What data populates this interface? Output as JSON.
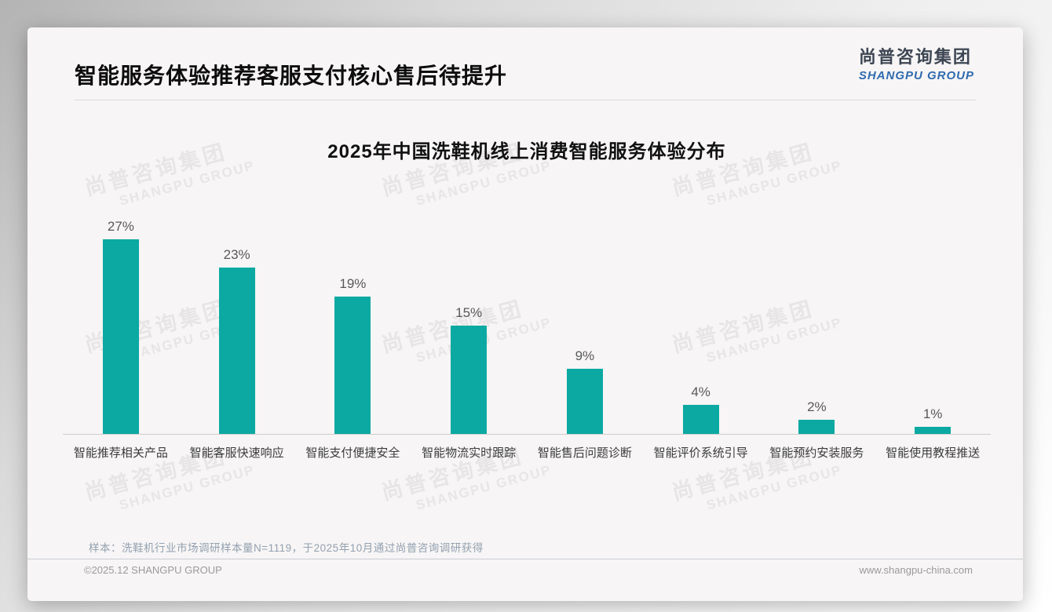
{
  "page": {
    "title": "智能服务体验推荐客服支付核心售后待提升",
    "logo": {
      "cn": "尚普咨询集团",
      "en": "SHANGPU GROUP"
    },
    "note": "样本：洗鞋机行业市场调研样本量N=1119，于2025年10月通过尚普咨询调研获得",
    "footer_left": "©2025.12 SHANGPU GROUP",
    "footer_right": "www.shangpu-china.com",
    "watermark": {
      "cn": "尚普咨询集团",
      "en": "SHANGPU GROUP"
    }
  },
  "chart_data": {
    "type": "bar",
    "title": "2025年中国洗鞋机线上消费智能服务体验分布",
    "categories": [
      "智能推荐相关产品",
      "智能客服快速响应",
      "智能支付便捷安全",
      "智能物流实时跟踪",
      "智能售后问题诊断",
      "智能评价系统引导",
      "智能预约安装服务",
      "智能使用教程推送"
    ],
    "values": [
      27,
      23,
      19,
      15,
      9,
      4,
      2,
      1
    ],
    "unit": "%",
    "ylim": [
      0,
      30
    ],
    "xlabel": "",
    "ylabel": "",
    "grid": false,
    "legend": "none",
    "data_labels": true,
    "bar_color": "#0ba9a2"
  },
  "colors": {
    "accent_teal": "#0ba9a2",
    "logo_blue": "#2f6bb0",
    "title_black": "#0d0d0d",
    "note_gray_blue": "#93a1b0",
    "footer_gray": "#9b9b9b"
  }
}
